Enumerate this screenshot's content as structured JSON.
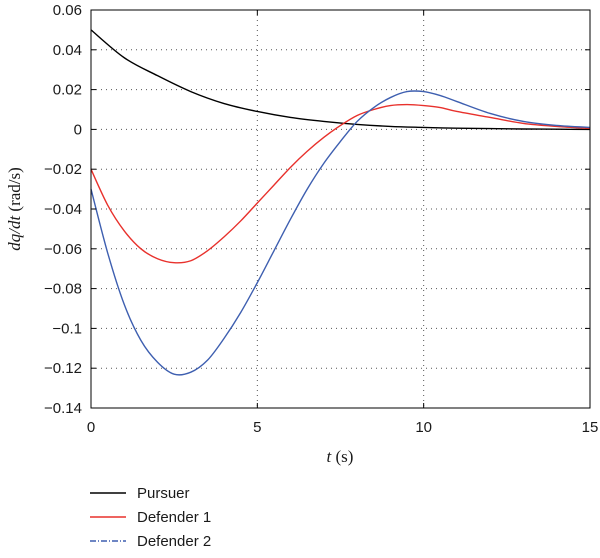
{
  "chart_data": {
    "type": "line",
    "xlabel": {
      "var": "t",
      "unit": " (s)"
    },
    "ylabel": {
      "var": "dq/dt",
      "unit": " (rad/s)"
    },
    "xlim": [
      0,
      15
    ],
    "ylim": [
      -0.14,
      0.06
    ],
    "x_ticks": [
      0,
      5,
      10,
      15
    ],
    "x_tick_labels": [
      "0",
      "5",
      "10",
      "15"
    ],
    "y_ticks": [
      0.06,
      0.04,
      0.02,
      0,
      -0.02,
      -0.04,
      -0.06,
      -0.08,
      -0.1,
      -0.12,
      -0.14
    ],
    "y_tick_labels": [
      "0.06",
      "0.04",
      "0.02",
      "0",
      "−0.02",
      "−0.04",
      "−0.06",
      "−0.08",
      "−0.1",
      "−0.12",
      "−0.14"
    ],
    "grid": "dotted",
    "legend_position": "below plot",
    "series": [
      {
        "name": "Pursuer",
        "color": "#000000",
        "x": [
          0,
          1,
          2,
          3,
          4,
          5,
          6,
          7,
          8,
          9,
          10,
          11,
          12,
          13,
          14,
          15
        ],
        "y": [
          0.05,
          0.036,
          0.027,
          0.019,
          0.013,
          0.009,
          0.006,
          0.004,
          0.0025,
          0.0015,
          0.001,
          0.0006,
          0.0004,
          0.0002,
          0.0001,
          0.0
        ]
      },
      {
        "name": "Defender 1",
        "color": "#e8312c",
        "x": [
          0,
          0.5,
          1,
          1.5,
          2,
          2.5,
          3,
          3.5,
          4,
          4.5,
          5,
          5.5,
          6,
          6.5,
          7,
          7.5,
          8,
          8.5,
          9,
          9.5,
          10,
          10.5,
          11,
          12,
          13,
          14,
          15
        ],
        "y": [
          -0.02,
          -0.038,
          -0.051,
          -0.06,
          -0.065,
          -0.067,
          -0.066,
          -0.061,
          -0.054,
          -0.046,
          -0.037,
          -0.028,
          -0.019,
          -0.011,
          -0.004,
          0.002,
          0.007,
          0.01,
          0.012,
          0.0125,
          0.012,
          0.011,
          0.009,
          0.006,
          0.003,
          0.0015,
          0.0005
        ]
      },
      {
        "name": "Defender 2",
        "color": "#3e5fb0",
        "x": [
          0,
          0.5,
          1,
          1.5,
          2,
          2.5,
          3,
          3.5,
          4,
          4.5,
          5,
          5.5,
          6,
          6.5,
          7,
          7.5,
          8,
          8.5,
          9,
          9.5,
          10,
          10.5,
          11,
          12,
          13,
          14,
          15
        ],
        "y": [
          -0.03,
          -0.062,
          -0.088,
          -0.106,
          -0.117,
          -0.123,
          -0.122,
          -0.116,
          -0.105,
          -0.092,
          -0.077,
          -0.061,
          -0.045,
          -0.03,
          -0.017,
          -0.006,
          0.004,
          0.011,
          0.016,
          0.019,
          0.019,
          0.017,
          0.014,
          0.008,
          0.004,
          0.002,
          0.001
        ]
      }
    ]
  }
}
